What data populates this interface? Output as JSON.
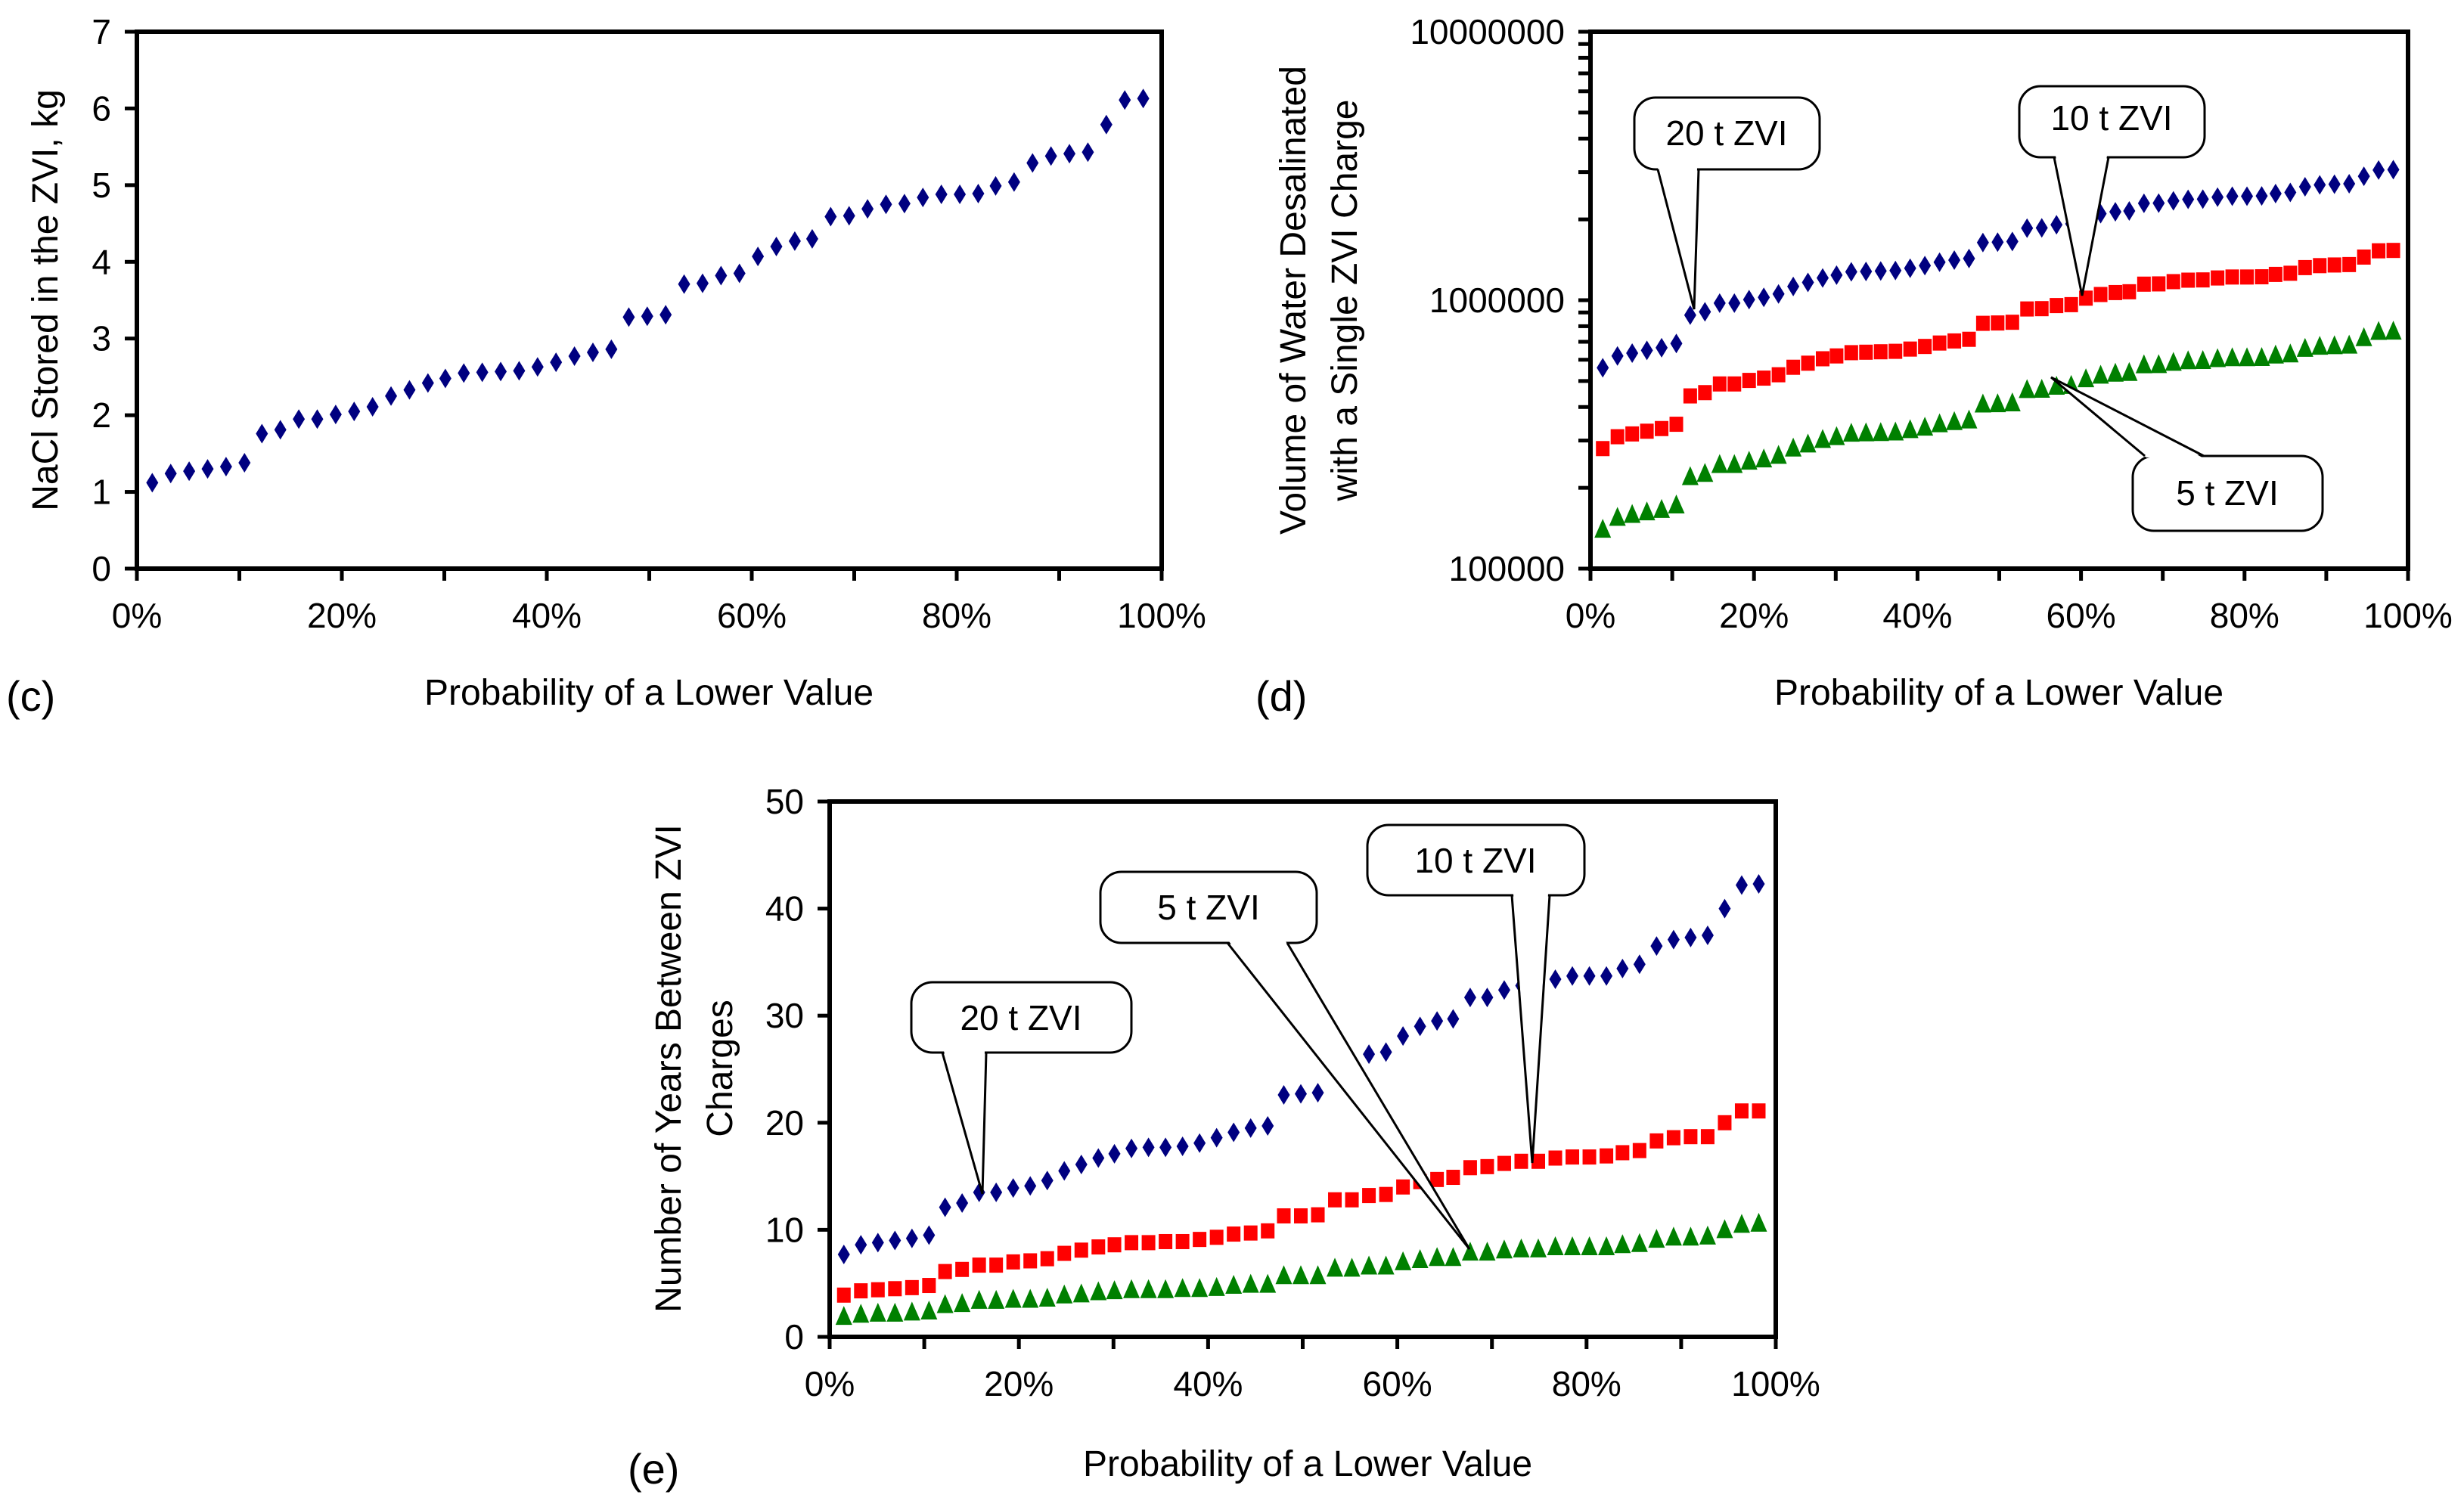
{
  "colors": {
    "series_20t": "#000080",
    "series_10t": "#ff0000",
    "series_5t": "#008000",
    "axis": "#000000"
  },
  "chart_data": [
    {
      "id": "c",
      "panel_label": "(c)",
      "type": "scatter",
      "xlabel": "Probability of a Lower Value",
      "ylabel": "NaCl Stored in the ZVI, kg",
      "xlim": [
        0,
        100
      ],
      "ylim": [
        0,
        7
      ],
      "yscale": "linear",
      "x_tick_labels": [
        "0%",
        "20%",
        "40%",
        "60%",
        "80%",
        "100%"
      ],
      "y_tick_labels": [
        "0",
        "1",
        "2",
        "3",
        "4",
        "5",
        "6",
        "7"
      ],
      "grid": false,
      "x": [
        1.5,
        3.3,
        5.1,
        6.9,
        8.7,
        10.5,
        12.2,
        14.0,
        15.8,
        17.6,
        19.4,
        21.2,
        23.0,
        24.8,
        26.6,
        28.4,
        30.1,
        31.9,
        33.7,
        35.5,
        37.3,
        39.1,
        40.9,
        42.7,
        44.5,
        46.3,
        48.0,
        49.8,
        51.6,
        53.4,
        55.2,
        57.0,
        58.8,
        60.6,
        62.4,
        64.2,
        65.9,
        67.7,
        69.5,
        71.3,
        73.1,
        74.9,
        76.7,
        78.5,
        80.3,
        82.1,
        83.8,
        85.6,
        87.4,
        89.2,
        91.0,
        92.8,
        94.6,
        96.4,
        98.2
      ],
      "series": [
        {
          "name": "NaCl",
          "marker": "diamond",
          "values": [
            1.12,
            1.24,
            1.27,
            1.3,
            1.33,
            1.38,
            1.76,
            1.81,
            1.95,
            1.95,
            2.01,
            2.05,
            2.11,
            2.25,
            2.33,
            2.42,
            2.48,
            2.55,
            2.56,
            2.57,
            2.58,
            2.63,
            2.69,
            2.77,
            2.82,
            2.86,
            3.28,
            3.29,
            3.31,
            3.71,
            3.72,
            3.82,
            3.85,
            4.07,
            4.2,
            4.27,
            4.3,
            4.59,
            4.6,
            4.69,
            4.75,
            4.76,
            4.84,
            4.88,
            4.88,
            4.89,
            4.99,
            5.04,
            5.29,
            5.38,
            5.41,
            5.43,
            5.79,
            6.11,
            6.13
          ]
        }
      ],
      "annotations": []
    },
    {
      "id": "d",
      "panel_label": "(d)",
      "type": "scatter",
      "xlabel": "Probability of a Lower Value",
      "ylabel": [
        "Volume of Water Desalinated",
        "with a Single ZVI Charge"
      ],
      "xlim": [
        0,
        100
      ],
      "ylim": [
        100000,
        10000000
      ],
      "yscale": "log",
      "x_tick_labels": [
        "0%",
        "20%",
        "40%",
        "60%",
        "80%",
        "100%"
      ],
      "y_tick_labels": [
        "100000",
        "1000000",
        "10000000"
      ],
      "grid": false,
      "x": [
        1.5,
        3.3,
        5.1,
        6.9,
        8.7,
        10.5,
        12.2,
        14.0,
        15.8,
        17.6,
        19.4,
        21.2,
        23.0,
        24.8,
        26.6,
        28.4,
        30.1,
        31.9,
        33.7,
        35.5,
        37.3,
        39.1,
        40.9,
        42.7,
        44.5,
        46.3,
        48.0,
        49.8,
        51.6,
        53.4,
        55.2,
        57.0,
        58.8,
        60.6,
        62.4,
        64.2,
        65.9,
        67.7,
        69.5,
        71.3,
        73.1,
        74.9,
        76.7,
        78.5,
        80.3,
        82.1,
        83.8,
        85.6,
        87.4,
        89.2,
        91.0,
        92.8,
        94.6,
        96.4,
        98.2
      ],
      "series": [
        {
          "name": "20 t ZVI",
          "marker": "diamond",
          "values": [
            560000,
            620000,
            635000,
            650000,
            665000,
            690000,
            880000,
            905000,
            975000,
            975000,
            1005000,
            1025000,
            1055000,
            1125000,
            1165000,
            1210000,
            1240000,
            1275000,
            1280000,
            1285000,
            1290000,
            1315000,
            1345000,
            1385000,
            1410000,
            1430000,
            1640000,
            1645000,
            1655000,
            1855000,
            1860000,
            1910000,
            1925000,
            2035000,
            2100000,
            2135000,
            2150000,
            2295000,
            2300000,
            2345000,
            2375000,
            2380000,
            2420000,
            2440000,
            2440000,
            2445000,
            2495000,
            2520000,
            2645000,
            2690000,
            2705000,
            2715000,
            2895000,
            3055000,
            3065000
          ]
        },
        {
          "name": "10 t ZVI",
          "marker": "square",
          "values": [
            280000,
            310000,
            317500,
            325000,
            332500,
            345000,
            440000,
            452500,
            487500,
            487500,
            502500,
            512500,
            527500,
            562500,
            582500,
            605000,
            620000,
            637500,
            640000,
            642500,
            645000,
            657500,
            672500,
            692500,
            705000,
            715000,
            820000,
            822500,
            827500,
            927500,
            930000,
            955000,
            962500,
            1017500,
            1050000,
            1067500,
            1075000,
            1147500,
            1150000,
            1172500,
            1187500,
            1190000,
            1210000,
            1220000,
            1220000,
            1222500,
            1247500,
            1260000,
            1322500,
            1345000,
            1352500,
            1357500,
            1447500,
            1527500,
            1532500
          ]
        },
        {
          "name": "5 t ZVI",
          "marker": "triangle",
          "values": [
            140000,
            155000,
            159000,
            162500,
            166000,
            172500,
            220000,
            226000,
            244000,
            244000,
            251000,
            256000,
            264000,
            281000,
            291000,
            302500,
            310000,
            319000,
            320000,
            321000,
            322500,
            329000,
            336000,
            346000,
            352500,
            357500,
            410000,
            411000,
            414000,
            464000,
            465000,
            477500,
            481000,
            509000,
            525000,
            534000,
            537500,
            574000,
            575000,
            586000,
            594000,
            595000,
            605000,
            610000,
            610000,
            611000,
            624000,
            630000,
            661000,
            672500,
            676000,
            679000,
            724000,
            764000,
            766000
          ]
        }
      ],
      "annotations": [
        "20 t ZVI",
        "10 t ZVI",
        "5 t ZVI"
      ]
    },
    {
      "id": "e",
      "panel_label": "(e)",
      "type": "scatter",
      "xlabel": "Probability of a Lower Value",
      "ylabel": [
        "Number of Years Between ZVI",
        "Charges"
      ],
      "xlim": [
        0,
        100
      ],
      "ylim": [
        0,
        50
      ],
      "yscale": "linear",
      "x_tick_labels": [
        "0%",
        "20%",
        "40%",
        "60%",
        "80%",
        "100%"
      ],
      "y_tick_labels": [
        "0",
        "10",
        "20",
        "30",
        "40",
        "50"
      ],
      "grid": false,
      "x": [
        1.5,
        3.3,
        5.1,
        6.9,
        8.7,
        10.5,
        12.2,
        14.0,
        15.8,
        17.6,
        19.4,
        21.2,
        23.0,
        24.8,
        26.6,
        28.4,
        30.1,
        31.9,
        33.7,
        35.5,
        37.3,
        39.1,
        40.9,
        42.7,
        44.5,
        46.3,
        48.0,
        49.8,
        51.6,
        53.4,
        55.2,
        57.0,
        58.8,
        60.6,
        62.4,
        64.2,
        65.9,
        67.7,
        69.5,
        71.3,
        73.1,
        74.9,
        76.7,
        78.5,
        80.3,
        82.1,
        83.8,
        85.6,
        87.4,
        89.2,
        91.0,
        92.8,
        94.6,
        96.4,
        98.2
      ],
      "series": [
        {
          "name": "20 t ZVI",
          "marker": "diamond",
          "values": [
            7.7,
            8.6,
            8.8,
            9.0,
            9.2,
            9.5,
            12.1,
            12.5,
            13.5,
            13.5,
            13.9,
            14.1,
            14.6,
            15.5,
            16.1,
            16.7,
            17.1,
            17.6,
            17.7,
            17.7,
            17.8,
            18.1,
            18.6,
            19.1,
            19.5,
            19.7,
            22.6,
            22.7,
            22.8,
            25.6,
            25.7,
            26.4,
            26.6,
            28.1,
            29.0,
            29.5,
            29.7,
            31.7,
            31.7,
            32.4,
            32.8,
            32.8,
            33.4,
            33.7,
            33.7,
            33.7,
            34.4,
            34.8,
            36.5,
            37.1,
            37.3,
            37.5,
            40.0,
            42.2,
            42.3
          ]
        },
        {
          "name": "10 t ZVI",
          "marker": "square",
          "values": [
            3.9,
            4.3,
            4.4,
            4.5,
            4.6,
            4.8,
            6.1,
            6.3,
            6.7,
            6.7,
            7.0,
            7.1,
            7.3,
            7.8,
            8.1,
            8.4,
            8.6,
            8.8,
            8.8,
            8.9,
            8.9,
            9.1,
            9.3,
            9.6,
            9.7,
            9.9,
            11.3,
            11.3,
            11.4,
            12.8,
            12.8,
            13.2,
            13.3,
            14.0,
            14.5,
            14.7,
            14.9,
            15.8,
            15.9,
            16.2,
            16.4,
            16.4,
            16.7,
            16.8,
            16.8,
            16.9,
            17.2,
            17.4,
            18.3,
            18.6,
            18.7,
            18.7,
            20.0,
            21.1,
            21.1
          ]
        },
        {
          "name": "5 t ZVI",
          "marker": "triangle",
          "values": [
            1.9,
            2.1,
            2.2,
            2.2,
            2.3,
            2.4,
            3.0,
            3.1,
            3.4,
            3.4,
            3.5,
            3.5,
            3.6,
            3.9,
            4.0,
            4.2,
            4.3,
            4.4,
            4.4,
            4.4,
            4.5,
            4.5,
            4.6,
            4.8,
            4.9,
            4.9,
            5.7,
            5.7,
            5.7,
            6.4,
            6.4,
            6.6,
            6.6,
            7.0,
            7.2,
            7.4,
            7.4,
            7.9,
            7.9,
            8.1,
            8.2,
            8.2,
            8.4,
            8.4,
            8.4,
            8.4,
            8.6,
            8.7,
            9.1,
            9.3,
            9.3,
            9.4,
            10.0,
            10.5,
            10.6
          ]
        }
      ],
      "annotations": [
        "20 t ZVI",
        "5 t ZVI",
        "10 t ZVI"
      ]
    }
  ]
}
